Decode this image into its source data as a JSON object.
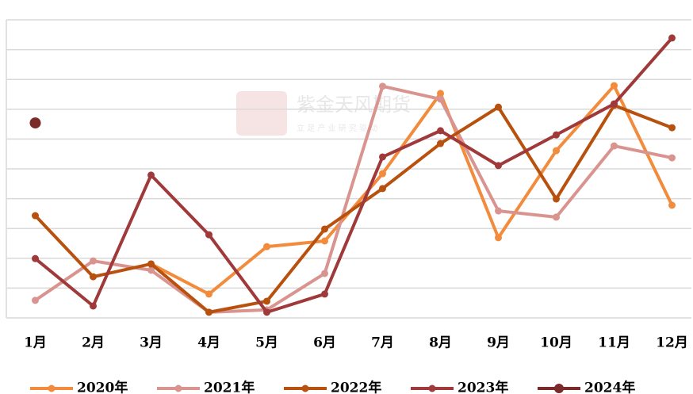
{
  "chart_data": {
    "type": "line",
    "watermark": "紫金天风期货",
    "watermark_sub": "立 足 产 业   研 究 驱 动",
    "categories": [
      "1月",
      "2月",
      "3月",
      "4月",
      "5月",
      "6月",
      "7月",
      "8月",
      "9月",
      "10月",
      "11月",
      "12月"
    ],
    "series": [
      {
        "name": "2020年",
        "color": "#f28c3c",
        "values": [
          null,
          null,
          1.81,
          0.8,
          2.39,
          2.58,
          4.84,
          7.53,
          2.69,
          5.61,
          7.79,
          3.78
        ]
      },
      {
        "name": "2021年",
        "color": "#d99490",
        "values": [
          0.59,
          1.91,
          1.6,
          0.19,
          0.27,
          1.49,
          7.77,
          7.34,
          3.59,
          3.38,
          5.77,
          5.37
        ]
      },
      {
        "name": "2022年",
        "color": "#b8510e",
        "values": [
          3.43,
          1.38,
          1.81,
          0.19,
          0.56,
          2.98,
          4.34,
          5.85,
          7.07,
          3.99,
          7.13,
          6.38
        ]
      },
      {
        "name": "2023年",
        "color": "#a0393a",
        "values": [
          1.99,
          0.4,
          4.79,
          2.79,
          0.19,
          0.8,
          5.4,
          6.28,
          5.11,
          6.14,
          7.18,
          9.39
        ]
      },
      {
        "name": "2024年",
        "color": "#7b2a2a",
        "values": [
          6.54,
          null,
          null,
          null,
          null,
          null,
          null,
          null,
          null,
          null,
          null,
          null
        ]
      }
    ],
    "ylim": [
      0,
      10
    ],
    "yticks": [
      0,
      1,
      2,
      3,
      4,
      5,
      6,
      7,
      8,
      9,
      10
    ],
    "grid": true
  }
}
